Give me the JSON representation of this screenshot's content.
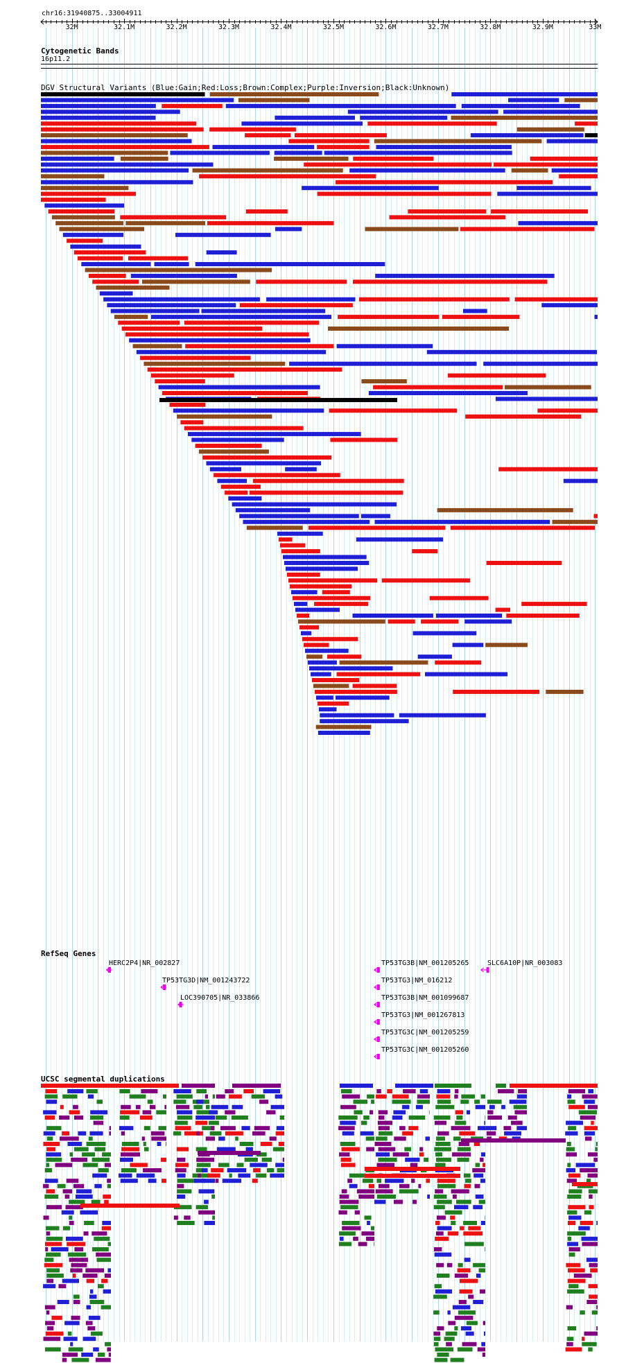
{
  "ruler": {
    "location": "chr16:31940875..33004911",
    "ticks": [
      "32M",
      "32.1M",
      "32.2M",
      "32.3M",
      "32.4M",
      "32.5M",
      "32.6M",
      "32.7M",
      "32.8M",
      "32.9M",
      "33M"
    ],
    "start_bp": 31940875,
    "end_bp": 33004911
  },
  "cytoband": {
    "title": "Cytogenetic Bands",
    "band": "16p11.2"
  },
  "dgv": {
    "title": "DGV Structural Variants (Blue:Gain;Red:Loss;Brown:Complex;Purple:Inversion;Black:Unknown)",
    "colors": {
      "gain": "#1f1fd6",
      "loss": "#ee1111",
      "complex": "#8b4a1c",
      "inversion": "#800080",
      "unknown": "#000000"
    }
  },
  "refseq": {
    "title": "RefSeq Genes",
    "strand_color": "#ee00ee",
    "genes": [
      {
        "label": "HERC2P4|NR_002827",
        "start": 32066000,
        "end": 32072000
      },
      {
        "label": "TP53TG3D|NM_001243722",
        "start": 32170000,
        "end": 32177000
      },
      {
        "label": "LOC390705|NR_033866",
        "start": 32203000,
        "end": 32208000
      },
      {
        "label": "TP53TG3B|NM_001205265",
        "start": 32578000,
        "end": 32586000
      },
      {
        "label": "TP53TG3|NM_016212",
        "start": 32578000,
        "end": 32586000
      },
      {
        "label": "TP53TG3B|NM_001099687",
        "start": 32578000,
        "end": 32586000
      },
      {
        "label": "TP53TG3|NM_001267813",
        "start": 32578000,
        "end": 32586000
      },
      {
        "label": "TP53TG3C|NM_001205259",
        "start": 32578000,
        "end": 32586000
      },
      {
        "label": "TP53TG3C|NM_001205260",
        "start": 32578000,
        "end": 32586000
      },
      {
        "label": "SLC6A10P|NR_003083",
        "start": 32782000,
        "end": 32795000
      }
    ]
  },
  "segdup": {
    "title": "UCSC segmental duplications",
    "colors": {
      "high": "#ee1111",
      "medium": "#800080",
      "low": "#1f1fd6",
      "lowest": "#208020"
    }
  }
}
